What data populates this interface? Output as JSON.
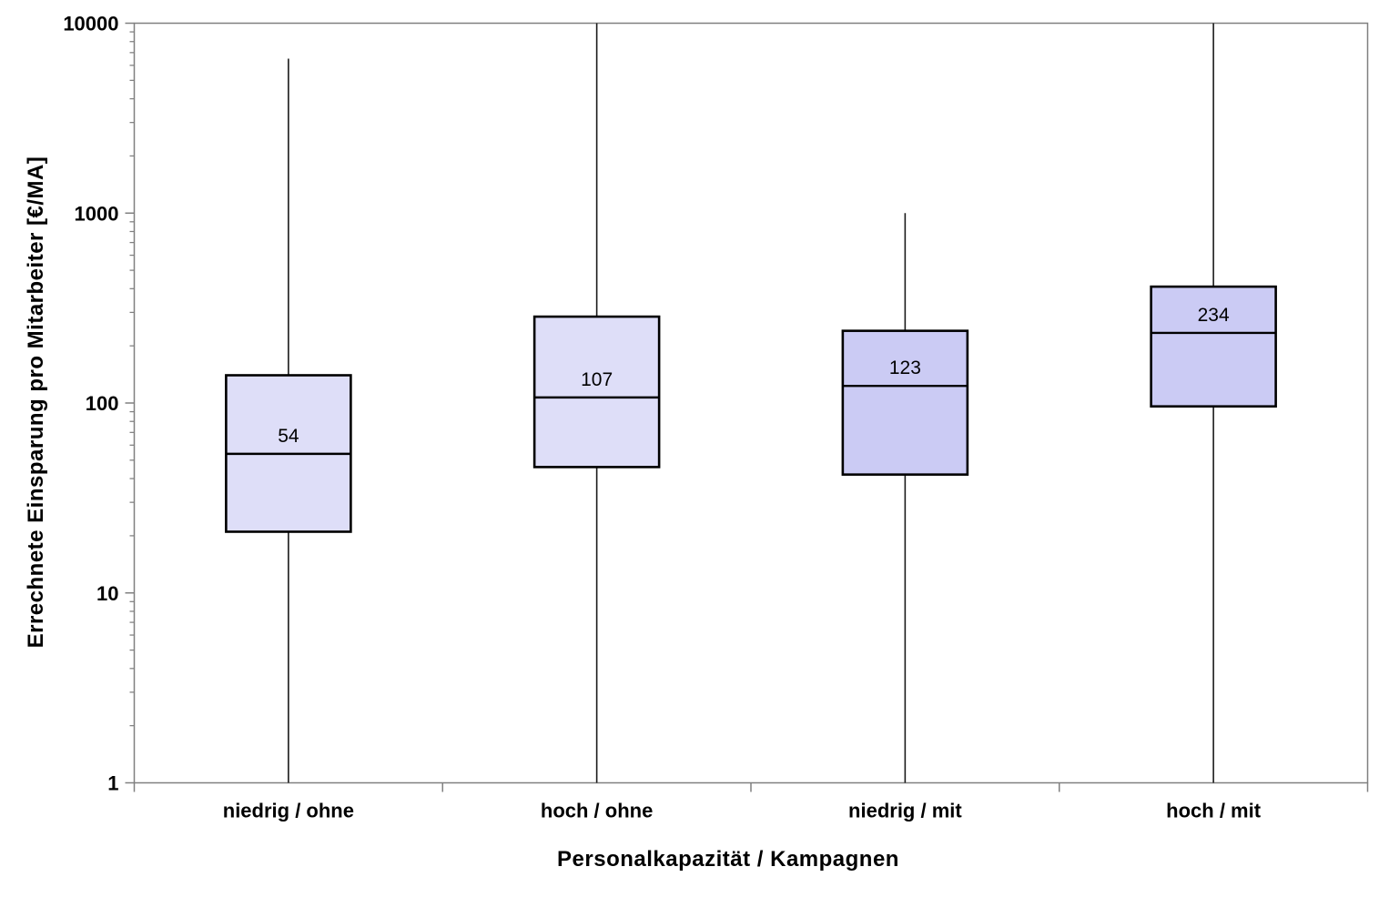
{
  "figure": {
    "background": "#ffffff"
  },
  "chart_data": {
    "type": "boxplot",
    "title": "",
    "xlabel": "Personalkapazität / Kampagnen",
    "ylabel": "Errechnete Einsparung pro Mitarbeiter [€/MA]",
    "y_scale": "log",
    "ylim": [
      1,
      10000
    ],
    "y_major_ticks": [
      1,
      10,
      100,
      1000,
      10000
    ],
    "y_tick_labels": [
      "1",
      "10",
      "100",
      "1000",
      "10000"
    ],
    "y_minor_ticks_per_decade": [
      2,
      3,
      4,
      5,
      6,
      7,
      8,
      9
    ],
    "grid": "off",
    "legend": "none",
    "categories": [
      "niedrig / ohne",
      "hoch / ohne",
      "niedrig / mit",
      "hoch / mit"
    ],
    "boxes": [
      {
        "category": "niedrig / ohne",
        "slug": "niedrig-ohne",
        "whisker_low": 1,
        "q1": 21,
        "median": 54,
        "q3": 140,
        "whisker_high": 6500,
        "median_label": "54",
        "fill": "#DEDEF8"
      },
      {
        "category": "hoch / ohne",
        "slug": "hoch-ohne",
        "whisker_low": 1,
        "q1": 46,
        "median": 107,
        "q3": 285,
        "whisker_high": 10000,
        "median_label": "107",
        "fill": "#DEDEF8"
      },
      {
        "category": "niedrig / mit",
        "slug": "niedrig-mit",
        "whisker_low": 1,
        "q1": 42,
        "median": 123,
        "q3": 240,
        "whisker_high": 1000,
        "median_label": "123",
        "fill": "#CBCBF4"
      },
      {
        "category": "hoch / mit",
        "slug": "hoch-mit",
        "whisker_low": 1,
        "q1": 96,
        "median": 234,
        "q3": 410,
        "whisker_high": 10000,
        "median_label": "234",
        "fill": "#CBCBF4"
      }
    ],
    "colors": {
      "box_border": "#000000",
      "median_line": "#000000",
      "whisker": "#1a1a1a",
      "axis": "#808080",
      "text": "#000000"
    }
  }
}
